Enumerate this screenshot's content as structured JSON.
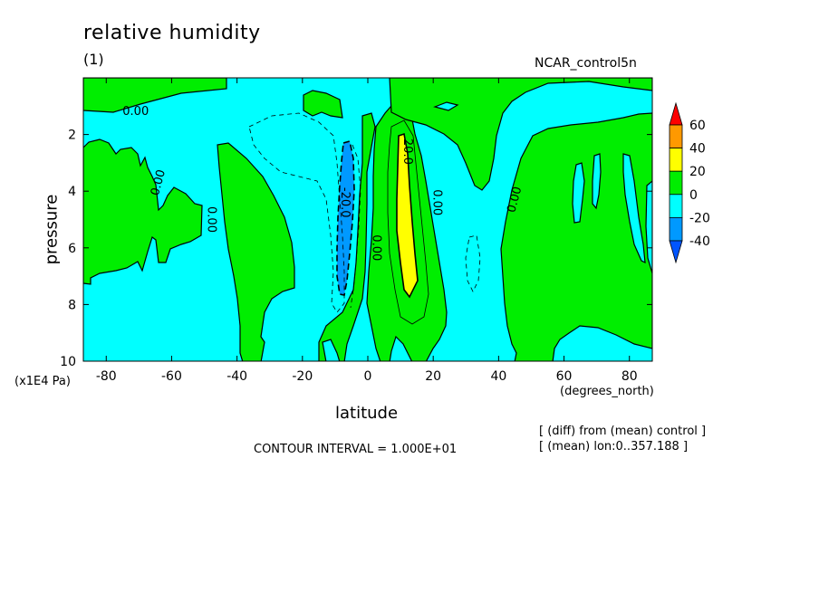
{
  "title": "relative humidity",
  "subtitle": "(1)",
  "run_name": "NCAR_control5n",
  "notes": {
    "contour_interval": "CONTOUR INTERVAL = 1.000E+01",
    "diff": "[ (diff) from (mean) control ]",
    "mean": "[ (mean) lon:0..357.188 ]"
  },
  "colors": {
    "above_40": "#ff0000",
    "c20_40": "#ff9900",
    "c0_20_yellow": "#ffff00",
    "c0_20": "#00ee00",
    "c_20_0": "#00ffff",
    "c_40_20": "#0099ff",
    "below_m40": "#0055ff"
  },
  "chart_data": {
    "type": "heatmap",
    "title": "relative humidity",
    "xlabel": "latitude",
    "xunit": "(degrees_north)",
    "ylabel": "pressure",
    "yunit": "(x1E4 Pa)",
    "xlim": [
      -87,
      87
    ],
    "ylim": [
      10,
      0
    ],
    "xticks": [
      -80,
      -60,
      -40,
      -20,
      0,
      20,
      40,
      60,
      80
    ],
    "yticks": [
      2,
      4,
      6,
      8,
      10
    ],
    "contour_labels": [
      "0.00",
      "0.00",
      "0.00",
      "-20.0",
      "0.00",
      "20.0",
      "0.00",
      "0.00"
    ],
    "legend": {
      "levels": [
        "60",
        "40",
        "20",
        "0",
        "-20",
        "-40"
      ],
      "bins": [
        {
          "range": "> 60",
          "color": "#ff0000"
        },
        {
          "range": "40 to 60",
          "color": "#ff9900"
        },
        {
          "range": "20 to 40",
          "color": "#ffff00"
        },
        {
          "range": "0 to 20",
          "color": "#00ee00"
        },
        {
          "range": "-20 to 0",
          "color": "#00ffff"
        },
        {
          "range": "-40 to -20",
          "color": "#0099ff"
        },
        {
          "range": "< -40",
          "color": "#0055ff"
        }
      ]
    }
  }
}
